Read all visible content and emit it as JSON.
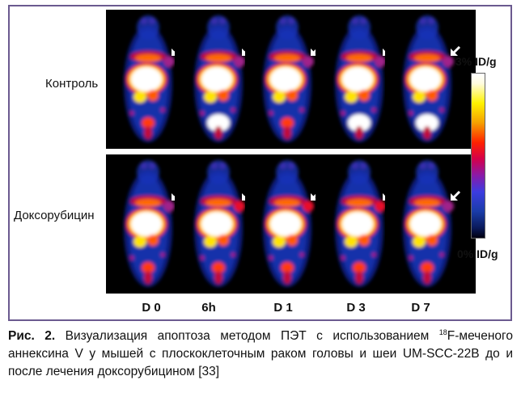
{
  "figure": {
    "row_labels": [
      "Контроль",
      "Доксорубицин"
    ],
    "column_labels": [
      "D 0",
      "6h",
      "D 1",
      "D 3",
      "D 7"
    ],
    "scale": {
      "max_label": "3% ID/g",
      "min_label": "0% ID/g"
    }
  },
  "caption": {
    "label": "Рис. 2.",
    "text_before_sup": " Визуализация апоптоза методом ПЭТ с использованием ",
    "sup": "18",
    "text_after_sup": "F-меченого аннексина V у мышей с плоскоклеточным раком головы и шеи UM-SCC-22B до и после лечения доксорубицином [33]"
  },
  "colors": {
    "frame_border": "#6b5a8f",
    "panel_bg": "#000000"
  }
}
